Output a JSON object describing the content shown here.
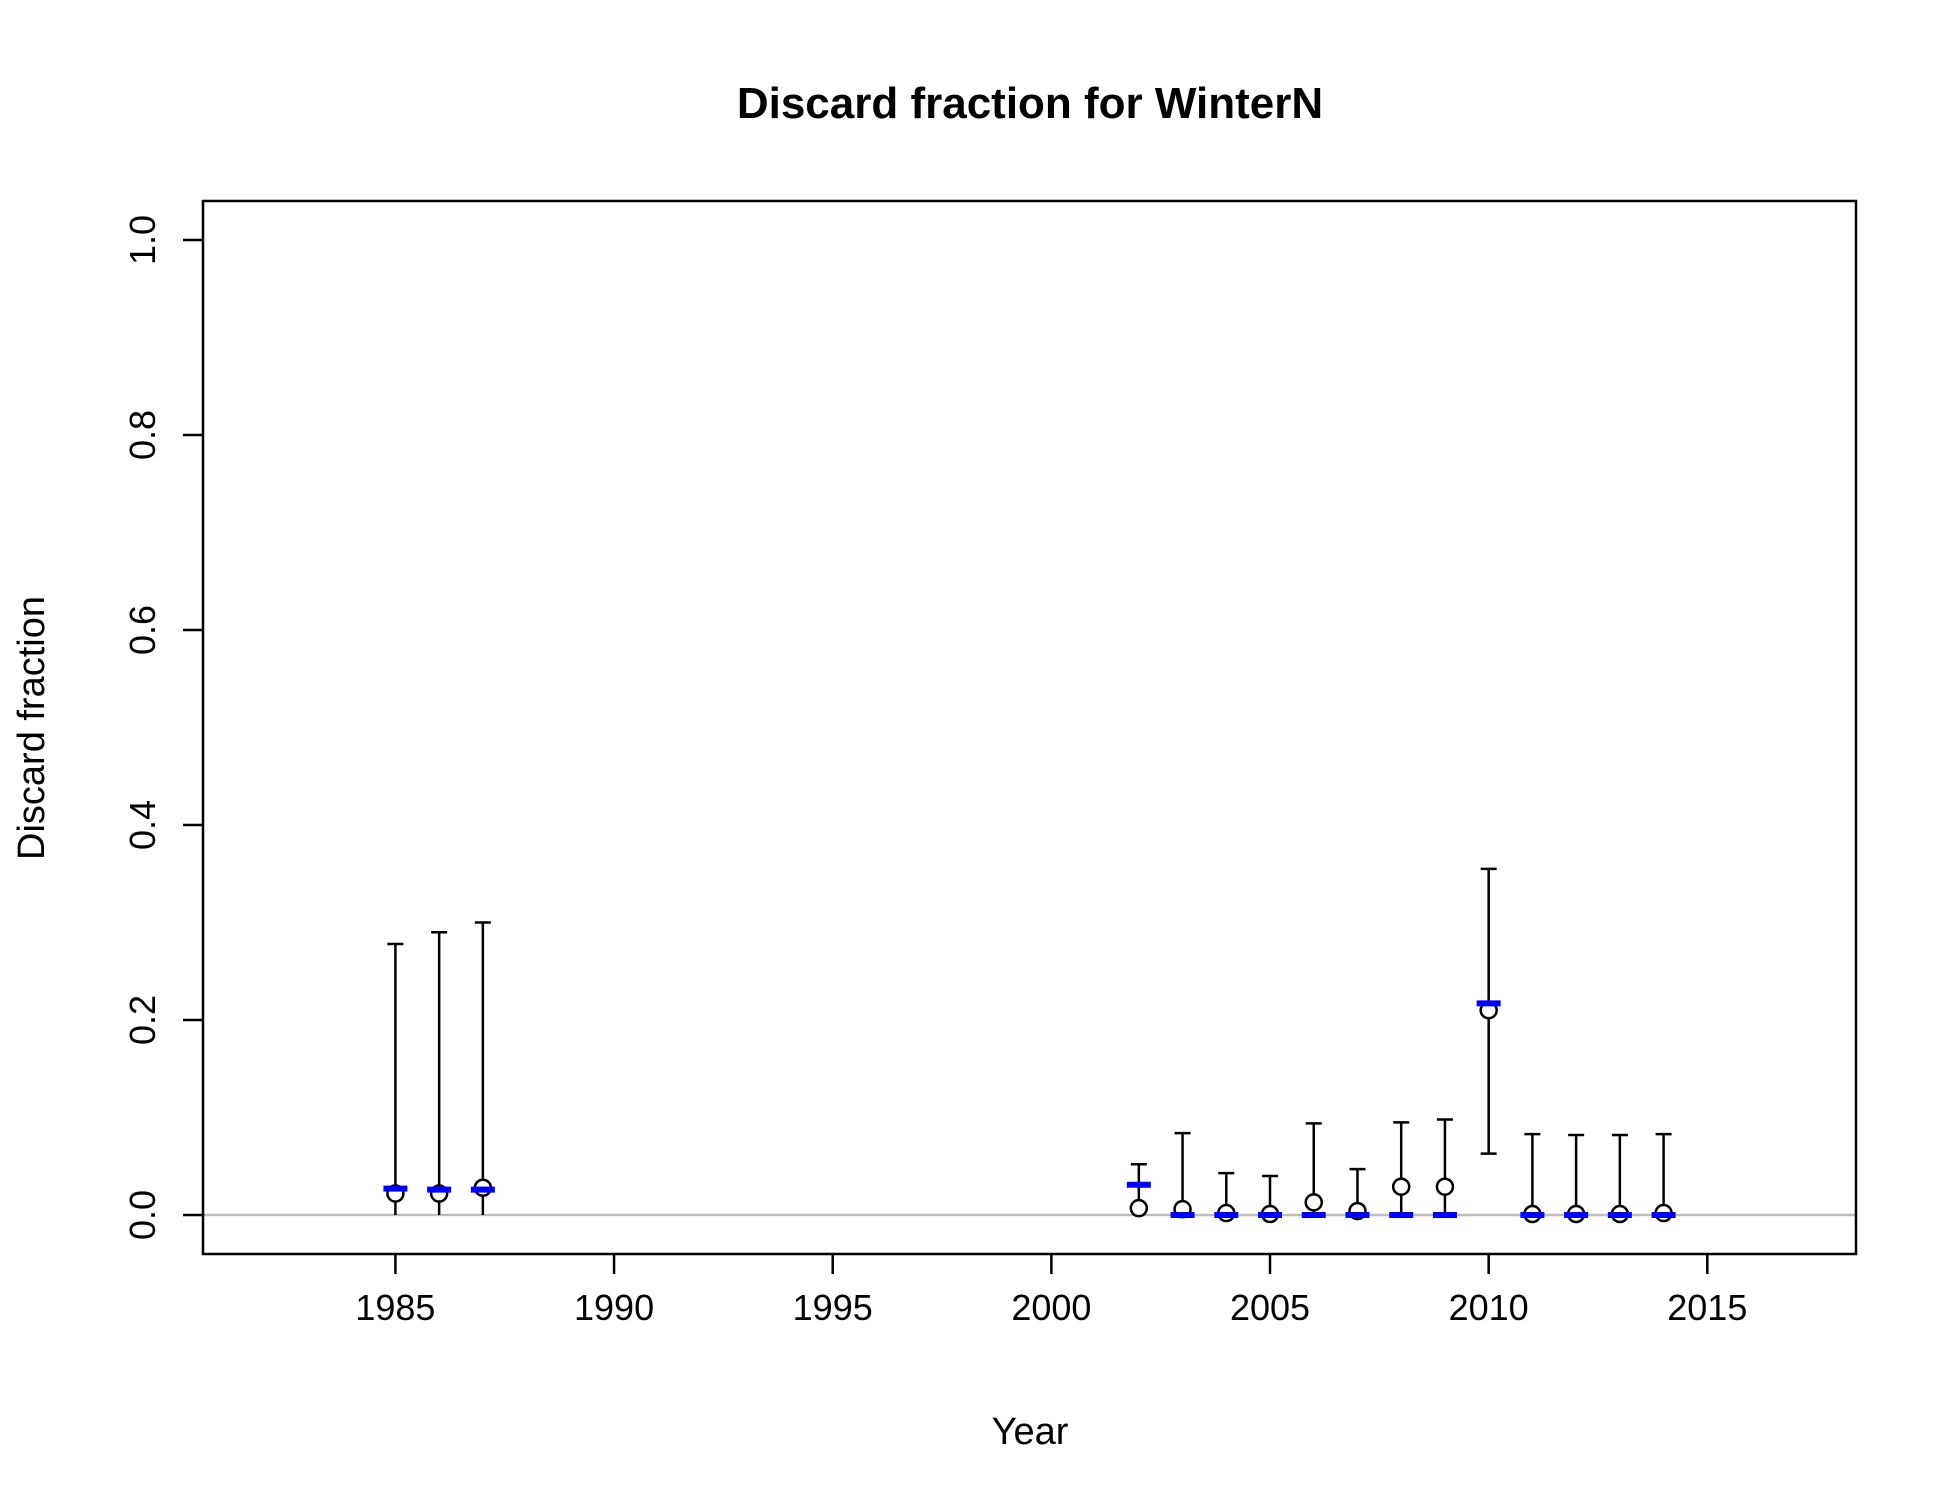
{
  "chart_data": {
    "type": "scatter",
    "title": "Discard fraction for WinterN",
    "xlabel": "Year",
    "ylabel": "Discard fraction",
    "xlim": [
      1980.6,
      2018.4
    ],
    "ylim": [
      -0.04,
      1.04
    ],
    "xticks": [
      "1985",
      "1990",
      "1995",
      "2000",
      "2005",
      "2010",
      "2015"
    ],
    "yticks": [
      "0.0",
      "0.2",
      "0.4",
      "0.6",
      "0.8",
      "1.0"
    ],
    "reference_line": {
      "y": 0.0,
      "color": "#bebebe"
    },
    "series": [
      {
        "kind": "observed",
        "marker": "open-circle",
        "color": "#000000",
        "points": [
          {
            "x": 1985,
            "y": 0.022,
            "lower": 0.0,
            "upper": 0.278
          },
          {
            "x": 1986,
            "y": 0.022,
            "lower": 0.0,
            "upper": 0.29
          },
          {
            "x": 1987,
            "y": 0.028,
            "lower": 0.0,
            "upper": 0.3
          },
          {
            "x": 2002,
            "y": 0.007,
            "lower": 0.0,
            "upper": 0.052
          },
          {
            "x": 2003,
            "y": 0.006,
            "lower": 0.0,
            "upper": 0.084
          },
          {
            "x": 2004,
            "y": 0.002,
            "lower": 0.0,
            "upper": 0.043
          },
          {
            "x": 2005,
            "y": 0.001,
            "lower": 0.0,
            "upper": 0.04
          },
          {
            "x": 2006,
            "y": 0.013,
            "lower": 0.0,
            "upper": 0.094
          },
          {
            "x": 2007,
            "y": 0.004,
            "lower": 0.0,
            "upper": 0.047
          },
          {
            "x": 2008,
            "y": 0.029,
            "lower": 0.0,
            "upper": 0.095
          },
          {
            "x": 2009,
            "y": 0.029,
            "lower": 0.0,
            "upper": 0.098
          },
          {
            "x": 2010,
            "y": 0.21,
            "lower": 0.063,
            "upper": 0.355
          },
          {
            "x": 2011,
            "y": 0.001,
            "lower": 0.0,
            "upper": 0.083
          },
          {
            "x": 2012,
            "y": 0.001,
            "lower": 0.0,
            "upper": 0.082
          },
          {
            "x": 2013,
            "y": 0.001,
            "lower": 0.0,
            "upper": 0.082
          },
          {
            "x": 2014,
            "y": 0.002,
            "lower": 0.0,
            "upper": 0.083
          }
        ]
      },
      {
        "kind": "expected",
        "marker": "dash",
        "color": "#0000ff",
        "points": [
          {
            "x": 1985,
            "y": 0.027
          },
          {
            "x": 1986,
            "y": 0.026
          },
          {
            "x": 1987,
            "y": 0.026
          },
          {
            "x": 2002,
            "y": 0.031
          },
          {
            "x": 2003,
            "y": 0.0
          },
          {
            "x": 2004,
            "y": 0.0
          },
          {
            "x": 2005,
            "y": 0.0
          },
          {
            "x": 2006,
            "y": 0.0
          },
          {
            "x": 2007,
            "y": 0.0
          },
          {
            "x": 2008,
            "y": 0.0
          },
          {
            "x": 2009,
            "y": 0.0
          },
          {
            "x": 2010,
            "y": 0.217
          },
          {
            "x": 2011,
            "y": 0.0
          },
          {
            "x": 2012,
            "y": 0.0
          },
          {
            "x": 2013,
            "y": 0.0
          },
          {
            "x": 2014,
            "y": 0.0
          }
        ]
      }
    ]
  }
}
